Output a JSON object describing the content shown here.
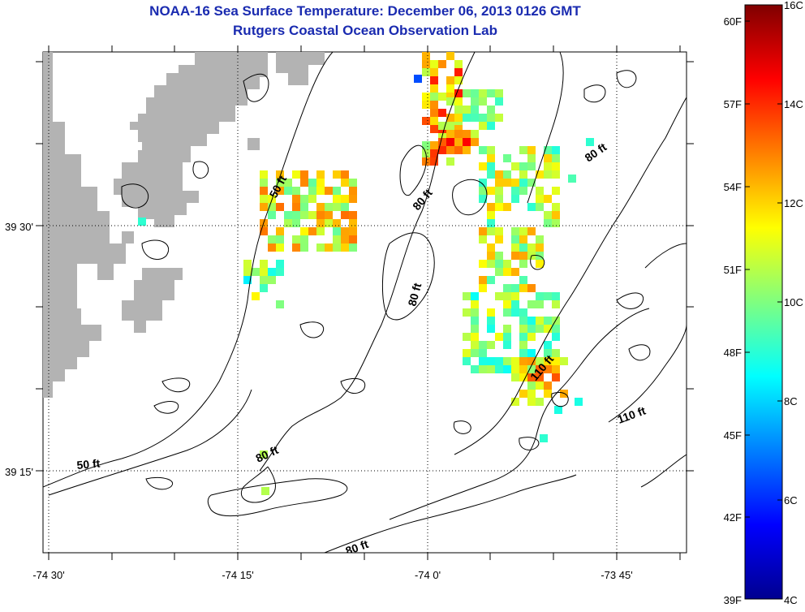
{
  "header": {
    "title": "NOAA-16 Sea Surface Temperature:  December 06, 2013 0126 GMT",
    "subtitle": "Rutgers Coastal Ocean Observation Lab"
  },
  "axes": {
    "x_ticks": [
      "-74 30'",
      "-74 15'",
      "-74 0'",
      "-73 45'"
    ],
    "y_ticks": [
      "39 30'",
      "39 15'"
    ]
  },
  "colorbar": {
    "fahrenheit": [
      "60F",
      "57F",
      "54F",
      "51F",
      "48F",
      "45F",
      "42F",
      "39F"
    ],
    "celsius": [
      "16C",
      "14C",
      "12C",
      "10C",
      "8C",
      "6C",
      "4C"
    ]
  },
  "contour_labels": [
    "50 ft",
    "80 ft",
    "80 ft",
    "80 ft",
    "110 ft",
    "110 ft",
    "80 ft",
    "50 ft",
    "80 ft"
  ],
  "colors": {
    "title": "#1a2bb0",
    "land": "#b3b3b3",
    "contour": "#000000"
  }
}
